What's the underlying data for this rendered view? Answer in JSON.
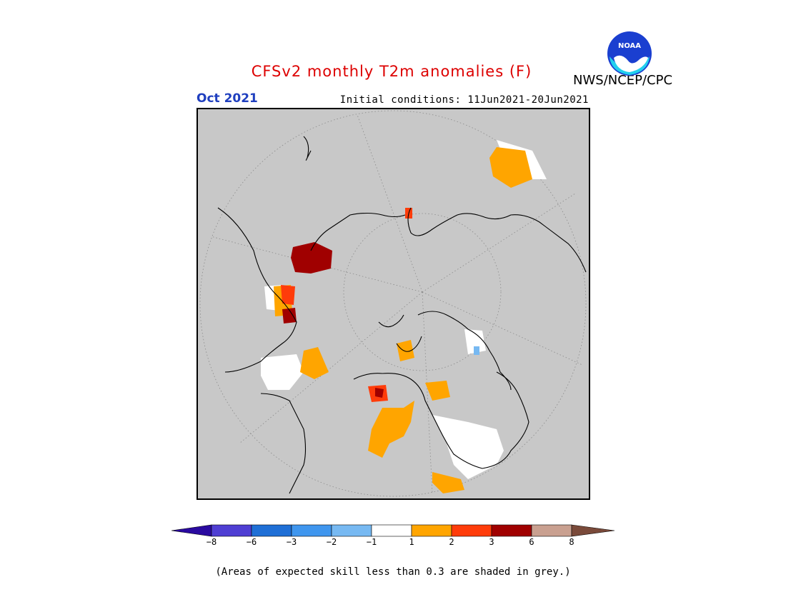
{
  "title": "CFSv2 monthly T2m anomalies (F)",
  "target_month": "Oct 2021",
  "initial_conditions": "Initial conditions: 11Jun2021-20Jun2021",
  "agency": "NWS/NCEP/CPC",
  "logo_text": "NOAA",
  "footnote": "(Areas of expected skill less than 0.3 are shaded in grey.)",
  "colors": {
    "title": "#dd0000",
    "month": "#1f3fbf",
    "grey_mask": "#c8c8c8",
    "coast": "#000000"
  },
  "colorbar": {
    "ticks": [
      "−8",
      "−6",
      "−3",
      "−2",
      "−1",
      "1",
      "2",
      "3",
      "6",
      "8"
    ],
    "bins": [
      {
        "range": "< -8",
        "color": "#2a0aa0"
      },
      {
        "range": "-8 to -6",
        "color": "#4f3ed3"
      },
      {
        "range": "-6 to -3",
        "color": "#1f6fd6"
      },
      {
        "range": "-3 to -2",
        "color": "#3f96ee"
      },
      {
        "range": "-2 to -1",
        "color": "#77b9f2"
      },
      {
        "range": "-1 to 1",
        "color": "#ffffff"
      },
      {
        "range": "1 to 2",
        "color": "#ffa500"
      },
      {
        "range": "2 to 3",
        "color": "#ff3c0a"
      },
      {
        "range": "3 to 6",
        "color": "#a00000"
      },
      {
        "range": "6 to 8",
        "color": "#c9a090"
      },
      {
        "range": "> 8",
        "color": "#7a4a3a"
      }
    ]
  }
}
